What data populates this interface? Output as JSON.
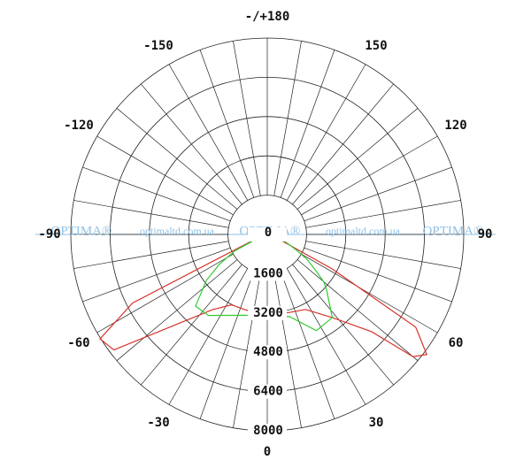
{
  "chart_data": {
    "type": "polar",
    "x": [
      -90,
      -80,
      -70,
      -63,
      -58,
      -53,
      -45,
      -36,
      -27,
      -15,
      0,
      15,
      27,
      38,
      47,
      50,
      53,
      58,
      62,
      70,
      80,
      90
    ],
    "series": [
      {
        "color": "#d8332b",
        "values": [
          0,
          100,
          400,
          6160,
          8030,
          7820,
          5150,
          3790,
          3220,
          3200,
          3240,
          3300,
          3430,
          4300,
          5810,
          7750,
          8130,
          7130,
          3000,
          400,
          100,
          0
        ]
      },
      {
        "color": "#33cc33",
        "values": [
          0,
          50,
          300,
          1500,
          2300,
          3100,
          4130,
          4080,
          3700,
          3410,
          3350,
          3460,
          4400,
          4300,
          3300,
          3000,
          2500,
          1900,
          1300,
          700,
          100,
          0
        ]
      }
    ],
    "rlim": [
      0,
      8000
    ],
    "rticks": [
      0,
      1600,
      3200,
      4800,
      6400,
      8000
    ],
    "thetaticks": [
      0,
      30,
      60,
      90,
      120,
      150,
      {
        "value": 180,
        "label": "-/+180"
      },
      -150,
      -120,
      -90,
      -60,
      -30
    ],
    "grid": true,
    "watermark": [
      "OPTIMA®",
      "optimaltd.com.ua",
      "OPTIMA®",
      "optimaltd.com.ua",
      "OPTIMA®"
    ]
  }
}
